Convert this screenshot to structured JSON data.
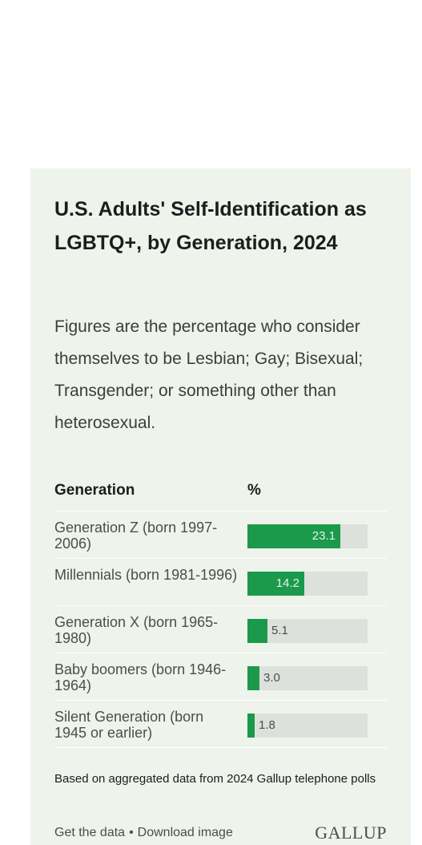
{
  "chart_data": {
    "type": "table",
    "title": "U.S. Adults' Self-Identification as LGBTQ+, by Generation, 2024",
    "subtitle": "Figures are the percentage who consider themselves to be Lesbian; Gay; Bisexual; Transgender; or something other than heterosexual.",
    "columns": [
      "Generation",
      "%"
    ],
    "categories": [
      "Generation Z (born 1997-2006)",
      "Millennials (born 1981-1996)",
      "Generation X (born 1965-1980)",
      "Baby boomers (born 1946-1964)",
      "Silent Generation (born 1945 or earlier)"
    ],
    "values": [
      23.1,
      14.2,
      5.1,
      3.0,
      1.8
    ],
    "value_labels": [
      "23.1",
      "14.2",
      "5.1",
      "3.0",
      "1.8"
    ],
    "bar_max": 30,
    "bar_color": "#1a9a4a",
    "track_color": "#dde1dc",
    "footnote": "Based on aggregated data from 2024 Gallup telephone polls"
  },
  "footer": {
    "get_data": "Get the data",
    "separator": "•",
    "download": "Download image",
    "logo": "GALLUP"
  },
  "colors": {
    "card_background": "#eef3ec",
    "accent": "#1a9a4a"
  }
}
